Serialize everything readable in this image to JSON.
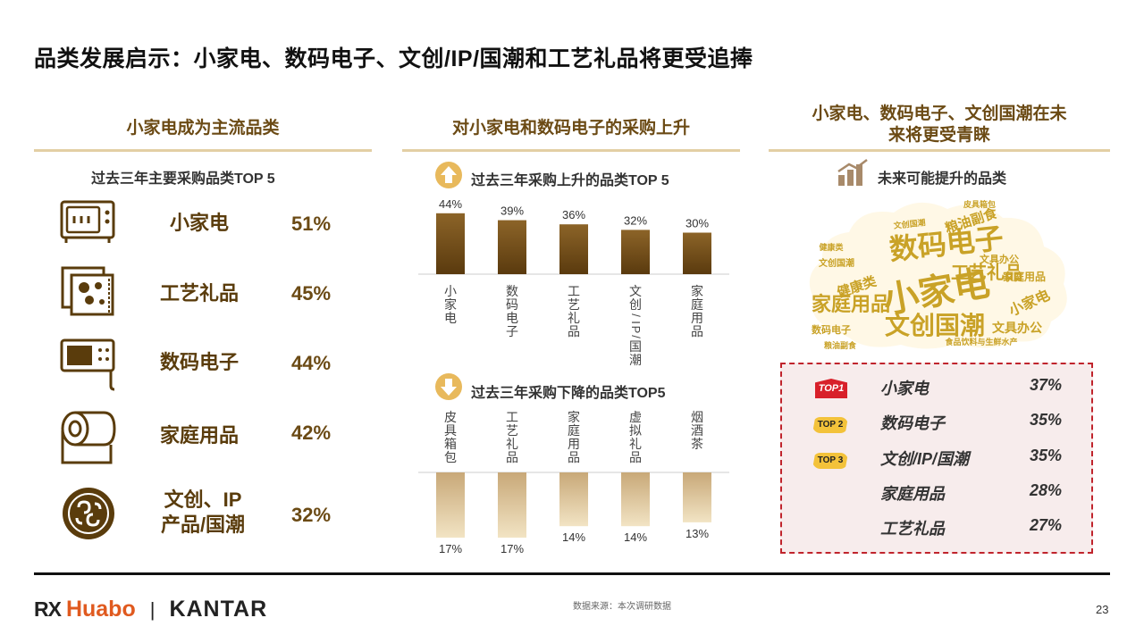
{
  "title": "品类发展启示：小家电、数码电子、文创/IP/国潮和工艺礼品将更受追捧",
  "left": {
    "header": "小家电成为主流品类",
    "subheader": "过去三年主要采购品类TOP 5",
    "items": [
      {
        "label": "小家电",
        "value": "51%",
        "icon": "microwave-icon"
      },
      {
        "label": "工艺礼品",
        "value": "45%",
        "icon": "embroidery-icon"
      },
      {
        "label": "数码电子",
        "value": "44%",
        "icon": "electronic-device-icon"
      },
      {
        "label": "家庭用品",
        "value": "42%",
        "icon": "paper-roll-icon"
      },
      {
        "label": "文创、IP\n产品/国潮",
        "value": "32%",
        "icon": "chinese-pattern-icon"
      }
    ]
  },
  "middle": {
    "header": "对小家电和数码电子的采购上升",
    "up_subheader": "过去三年采购上升的品类TOP 5",
    "down_subheader": "过去三年采购下降的品类TOP5"
  },
  "chart_data": [
    {
      "type": "bar",
      "title": "过去三年采购上升的品类TOP 5",
      "categories": [
        "小家电",
        "数码电子",
        "工艺礼品",
        "文创/IP/国潮",
        "家庭用品"
      ],
      "values": [
        44,
        39,
        36,
        32,
        30
      ],
      "labels": [
        "44%",
        "39%",
        "36%",
        "32%",
        "30%"
      ],
      "color": "#6e4a15"
    },
    {
      "type": "bar",
      "title": "过去三年采购下降的品类TOP5",
      "categories": [
        "皮具箱包",
        "工艺礼品",
        "家庭用品",
        "虚拟礼品",
        "烟酒茶"
      ],
      "values": [
        17,
        17,
        14,
        14,
        13
      ],
      "labels": [
        "17%",
        "17%",
        "14%",
        "14%",
        "13%"
      ],
      "color": "#e8d3a8"
    }
  ],
  "right": {
    "header_line1": "小家电、数码电子、文创国潮在未",
    "header_line2": "来将更受青睐",
    "subheader": "未来可能提升的品类",
    "cloud_words": [
      {
        "text": "小家电",
        "size": 40
      },
      {
        "text": "数码电子",
        "size": 32
      },
      {
        "text": "文创国潮",
        "size": 28
      },
      {
        "text": "家庭用品",
        "size": 22
      },
      {
        "text": "工艺礼品",
        "size": 20
      },
      {
        "text": "粮油副食",
        "size": 15
      },
      {
        "text": "健康类",
        "size": 15
      },
      {
        "text": "小家电",
        "size": 16
      },
      {
        "text": "文具办公",
        "size": 14
      },
      {
        "text": "家庭用品",
        "size": 12
      },
      {
        "text": "文具办公",
        "size": 11
      },
      {
        "text": "数码电子",
        "size": 11
      },
      {
        "text": "文创国潮",
        "size": 10
      },
      {
        "text": "食品饮料与生鲜水产",
        "size": 9
      },
      {
        "text": "皮具箱包",
        "size": 9
      },
      {
        "text": "粮油副食",
        "size": 9
      },
      {
        "text": "健康类",
        "size": 9
      },
      {
        "text": "文创国潮",
        "size": 9
      }
    ],
    "cloud_color": "#c9a227",
    "ranking": [
      {
        "badge": "TOP1",
        "label": "小家电",
        "value": "37%"
      },
      {
        "badge": "TOP 2",
        "label": "数码电子",
        "value": "35%"
      },
      {
        "badge": "TOP 3",
        "label": "文创/IP/国潮",
        "value": "35%"
      },
      {
        "badge": "",
        "label": "家庭用品",
        "value": "28%"
      },
      {
        "badge": "",
        "label": "工艺礼品",
        "value": "27%"
      }
    ]
  },
  "footer": {
    "logo_rx": "RX",
    "logo_huabo": "Huabo",
    "logo_sep": "|",
    "logo_kantar": "KANTAR",
    "source": "数据来源：本次调研数据",
    "page": "23"
  },
  "colors": {
    "brown": "#6b4a14",
    "gold": "#e3cfa4",
    "red_dash": "#c0242c"
  }
}
